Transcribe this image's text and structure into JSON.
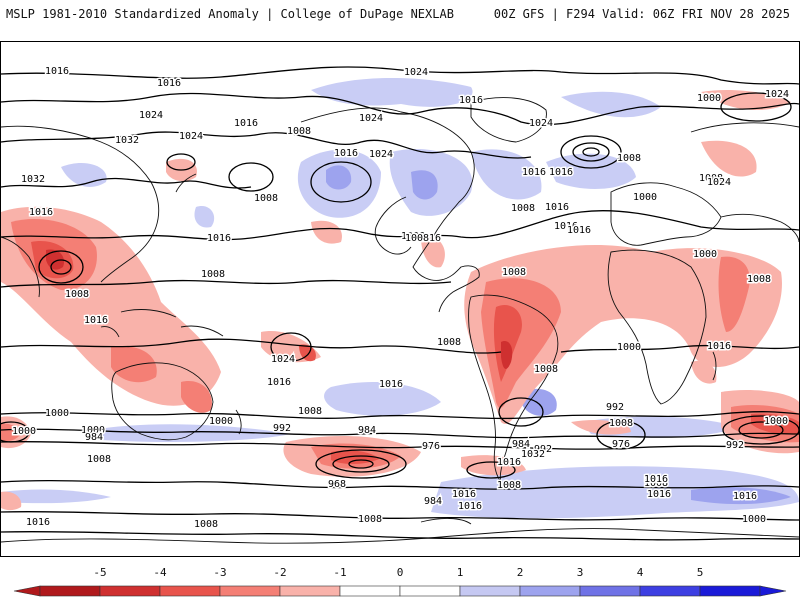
{
  "header": {
    "left_title": "MSLP 1981-2010 Standardized Anomaly | College of DuPage NEXLAB",
    "right_title": "00Z GFS | F294 Valid: 06Z FRI NOV 28 2025"
  },
  "map": {
    "projection": "global cylindrical",
    "variable": "MSLP standardized anomaly with isobars",
    "isobar_labels": [
      "1016",
      "1016",
      "1024",
      "1016",
      "1024",
      "1032",
      "1024",
      "1016",
      "1008",
      "1024",
      "1016",
      "1024",
      "1032",
      "1016",
      "1024",
      "1016",
      "1016",
      "1008",
      "1008",
      "1000",
      "1024",
      "1008",
      "1000",
      "1008",
      "1016",
      "1016",
      "1016",
      "1008",
      "1008",
      "1016",
      "1016",
      "1008",
      "1008",
      "1008",
      "1016",
      "1024",
      "1008",
      "1016",
      "1000",
      "1008",
      "1016",
      "1016",
      "1008",
      "1000",
      "992",
      "1008",
      "1000",
      "984",
      "1000",
      "992",
      "976",
      "968",
      "984",
      "992",
      "984",
      "976",
      "992",
      "1000",
      "1008",
      "1016",
      "1016",
      "1000",
      "1000",
      "1008",
      "1008",
      "1016",
      "1016",
      "1008",
      "984",
      "1008",
      "1016",
      "1032",
      "1016",
      "1016",
      "1024",
      "1000",
      "1008"
    ]
  },
  "colorbar": {
    "ticks": [
      "-5",
      "-4",
      "-3",
      "-2",
      "-1",
      "0",
      "1",
      "2",
      "3",
      "4",
      "5"
    ],
    "colors": [
      "#b0191c",
      "#cf3030",
      "#e8544c",
      "#f47f75",
      "#f9b2aa",
      "#ffffff",
      "#ffffff",
      "#c5c8f2",
      "#9da3ee",
      "#6f72e6",
      "#3d3fe2",
      "#1a1ad8"
    ]
  }
}
